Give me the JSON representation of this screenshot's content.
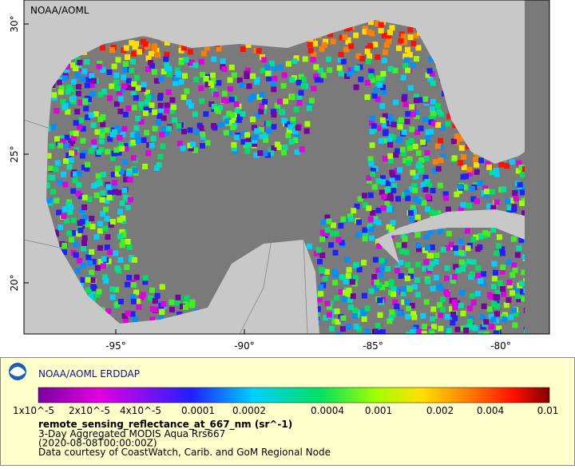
{
  "map": {
    "watermark": "NOAA/AOML",
    "lat_labels": [
      "30°",
      "25°",
      "20°"
    ],
    "lon_labels": [
      "-95°",
      "-90°",
      "-85°",
      "-80°"
    ]
  },
  "legend": {
    "title": "NOAA/AOML ERDDAP",
    "colorbar_labels": [
      "1x10^-5",
      "2x10^-5",
      "4x10^-5",
      "0.0001",
      "0.0002",
      "0.0004",
      "0.001",
      "0.002",
      "0.004",
      "0.01"
    ],
    "variable": "remote_sensing_reflectance_at_667_nm (sr^-1)",
    "lines": [
      "3-Day Aggregated MODIS Aqua Rrs667",
      "(2020-08-08T00:00:00Z)",
      "Data courtesy of CoastWatch, Carib. and GoM Regional Node"
    ]
  }
}
